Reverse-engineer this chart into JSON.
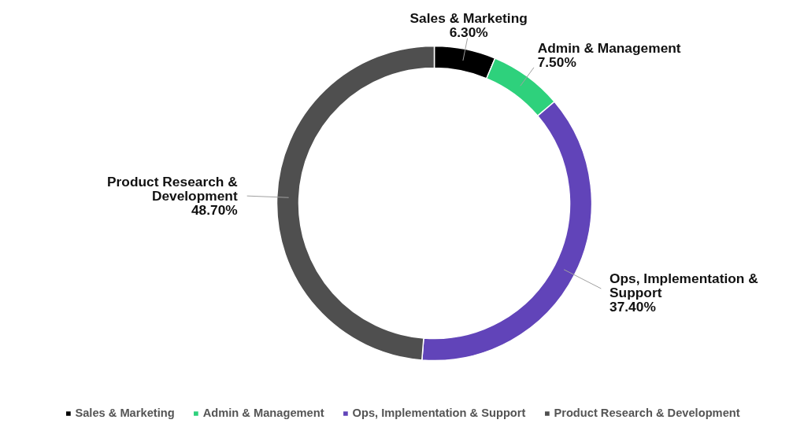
{
  "chart_data": {
    "type": "donut",
    "categories": [
      "Sales & Marketing",
      "Admin & Management",
      "Ops, Implementation & Support",
      "Product Research & Development"
    ],
    "values": [
      6.3,
      7.5,
      37.4,
      48.7
    ],
    "value_labels": [
      "6.30%",
      "7.50%",
      "37.40%",
      "48.70%"
    ],
    "colors": [
      "#000000",
      "#2ed17c",
      "#6144b9",
      "#4f4f4f"
    ],
    "legend": "bottom"
  }
}
